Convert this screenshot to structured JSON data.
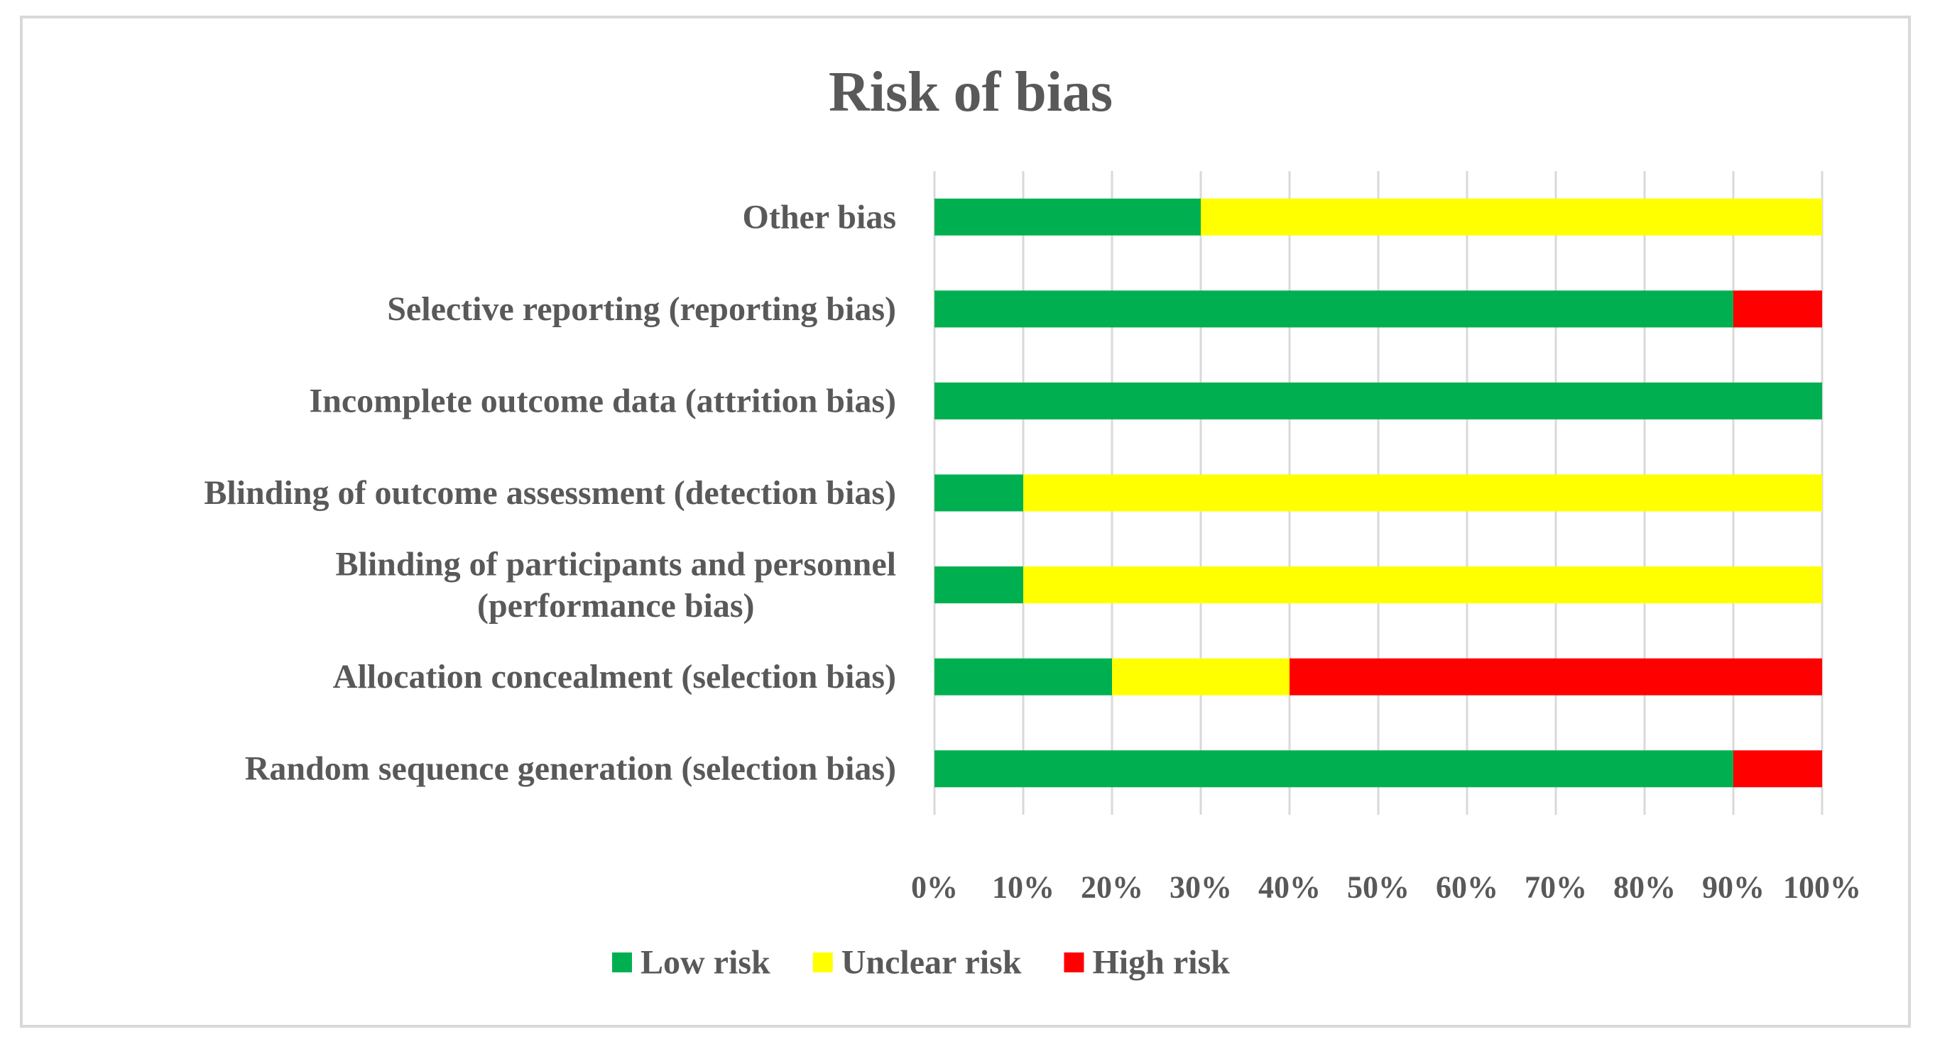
{
  "chart_data": {
    "type": "bar",
    "orientation": "horizontal",
    "stacked": "percent",
    "title": "Risk of bias",
    "xlabel": "",
    "ylabel": "",
    "xlim": [
      0,
      100
    ],
    "grid": true,
    "legend_position": "bottom",
    "categories": [
      {
        "lines": [
          "Random sequence generation (selection bias)"
        ]
      },
      {
        "lines": [
          "Allocation concealment (selection bias)"
        ]
      },
      {
        "lines": [
          "Blinding of participants and personnel",
          "(performance bias)"
        ]
      },
      {
        "lines": [
          "Blinding of outcome assessment (detection bias)"
        ]
      },
      {
        "lines": [
          "Incomplete outcome data (attrition bias)"
        ]
      },
      {
        "lines": [
          "Selective reporting (reporting bias)"
        ]
      },
      {
        "lines": [
          "Other bias"
        ]
      }
    ],
    "series": [
      {
        "name": "Low risk",
        "color": "#00b050",
        "values": [
          90,
          20,
          10,
          10,
          100,
          90,
          30
        ]
      },
      {
        "name": "Unclear risk",
        "color": "#ffff00",
        "values": [
          0,
          20,
          90,
          90,
          0,
          0,
          70
        ]
      },
      {
        "name": "High risk",
        "color": "#ff0000",
        "values": [
          10,
          60,
          0,
          0,
          0,
          10,
          0
        ]
      }
    ],
    "x_ticks": [
      {
        "value": 0,
        "label": "0%"
      },
      {
        "value": 10,
        "label": "10%"
      },
      {
        "value": 20,
        "label": "20%"
      },
      {
        "value": 30,
        "label": "30%"
      },
      {
        "value": 40,
        "label": "40%"
      },
      {
        "value": 50,
        "label": "50%"
      },
      {
        "value": 60,
        "label": "60%"
      },
      {
        "value": 70,
        "label": "70%"
      },
      {
        "value": 80,
        "label": "80%"
      },
      {
        "value": 90,
        "label": "90%"
      },
      {
        "value": 100,
        "label": "100%"
      }
    ],
    "gridline_color": "#d9d9d9",
    "text_color": "#595959"
  }
}
